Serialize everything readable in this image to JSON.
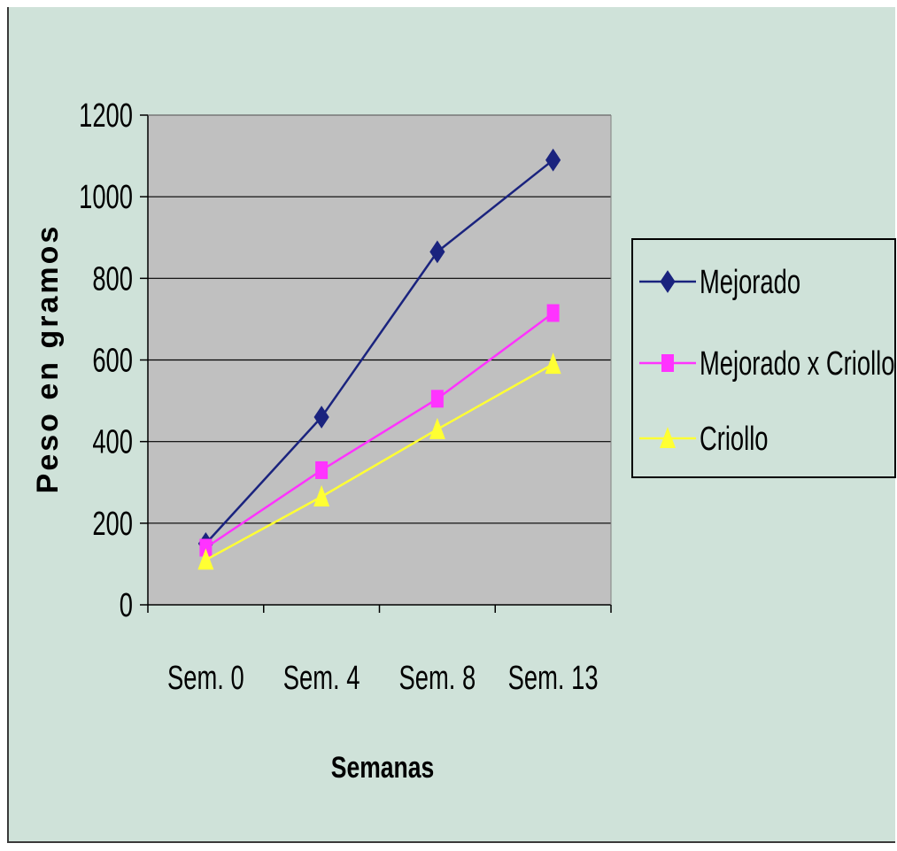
{
  "chart_data": {
    "type": "line",
    "title": "",
    "xlabel": "Semanas",
    "ylabel": "Peso en gramos",
    "categories": [
      "Sem. 0",
      "Sem. 4",
      "Sem. 8",
      "Sem. 13"
    ],
    "ylim": [
      0,
      1200
    ],
    "yticks": [
      0,
      200,
      400,
      600,
      800,
      1000,
      1200
    ],
    "grid": true,
    "legend_position": "right",
    "plot_background": "#c0c0c0",
    "series": [
      {
        "name": "Mejorado",
        "values": [
          150,
          460,
          865,
          1090
        ],
        "color": "#1a237e",
        "marker": "diamond"
      },
      {
        "name": "Mejorado x Criollo",
        "values": [
          140,
          330,
          505,
          715
        ],
        "color": "#ff33ff",
        "marker": "square"
      },
      {
        "name": "Criollo",
        "values": [
          110,
          265,
          430,
          590
        ],
        "color": "#ffff33",
        "marker": "triangle"
      }
    ]
  }
}
